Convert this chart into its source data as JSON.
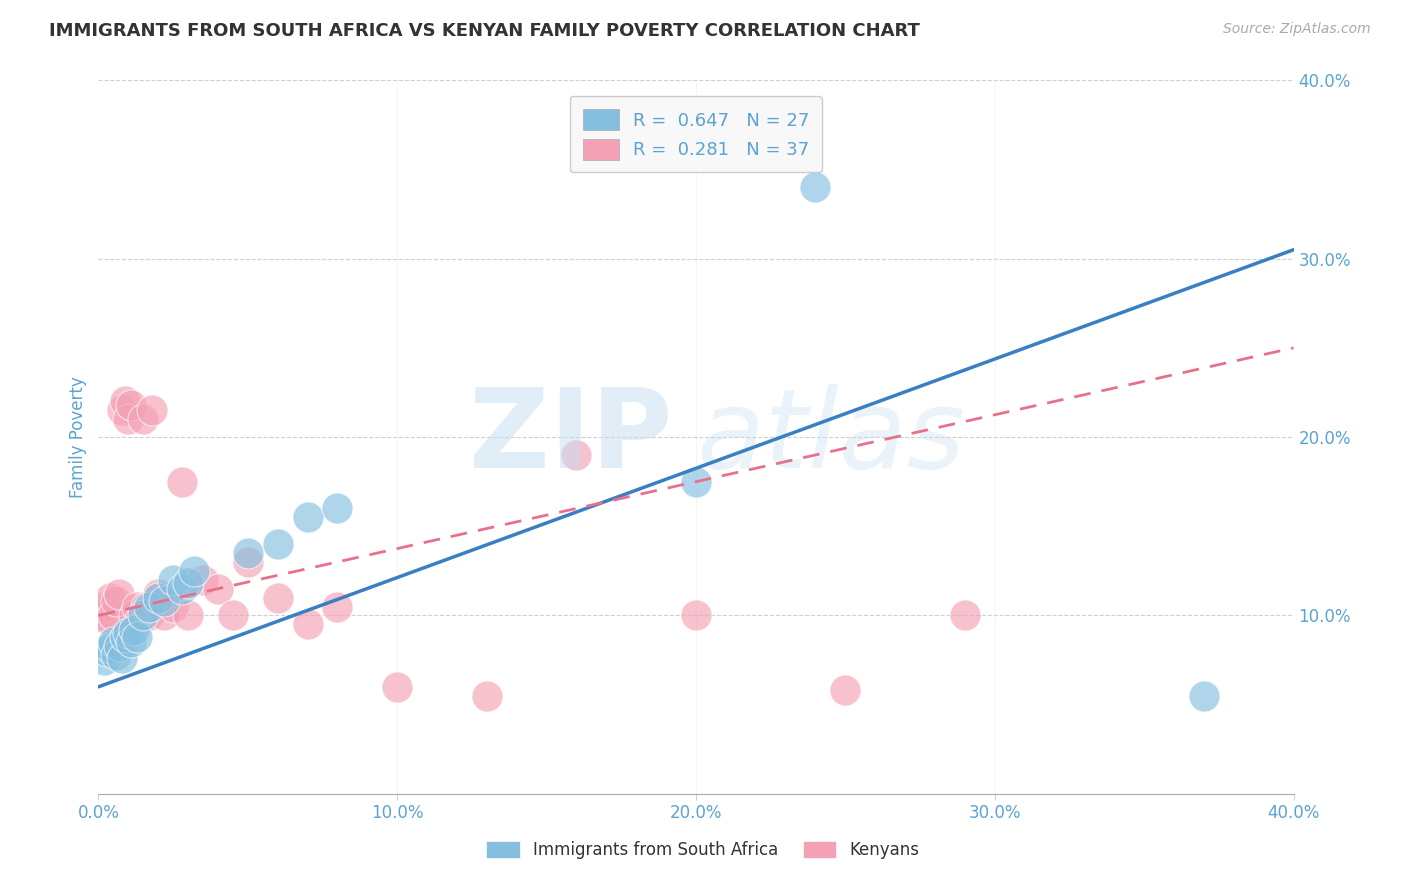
{
  "title": "IMMIGRANTS FROM SOUTH AFRICA VS KENYAN FAMILY POVERTY CORRELATION CHART",
  "source": "Source: ZipAtlas.com",
  "ylabel": "Family Poverty",
  "xlim": [
    0.0,
    0.4
  ],
  "ylim": [
    0.0,
    0.4
  ],
  "xtick_labels": [
    "0.0%",
    "10.0%",
    "20.0%",
    "30.0%",
    "40.0%"
  ],
  "xtick_vals": [
    0.0,
    0.1,
    0.2,
    0.3,
    0.4
  ],
  "ytick_vals": [
    0.1,
    0.2,
    0.3,
    0.4
  ],
  "blue_R": "0.647",
  "blue_N": "27",
  "pink_R": "0.281",
  "pink_N": "37",
  "blue_color": "#85bfe0",
  "pink_color": "#f4a0b5",
  "blue_line_color": "#3a7fc1",
  "pink_line_color": "#e8708a",
  "grid_color": "#d0d0d0",
  "title_color": "#333333",
  "axis_label_color": "#5ba3d0",
  "blue_scatter_x": [
    0.002,
    0.003,
    0.004,
    0.005,
    0.006,
    0.007,
    0.008,
    0.009,
    0.01,
    0.011,
    0.012,
    0.013,
    0.015,
    0.017,
    0.02,
    0.022,
    0.025,
    0.028,
    0.03,
    0.032,
    0.05,
    0.06,
    0.07,
    0.08,
    0.2,
    0.24,
    0.37
  ],
  "blue_scatter_y": [
    0.075,
    0.08,
    0.082,
    0.085,
    0.078,
    0.083,
    0.076,
    0.088,
    0.09,
    0.085,
    0.092,
    0.088,
    0.1,
    0.105,
    0.11,
    0.108,
    0.12,
    0.115,
    0.118,
    0.125,
    0.135,
    0.14,
    0.155,
    0.16,
    0.175,
    0.34,
    0.055
  ],
  "pink_scatter_x": [
    0.001,
    0.002,
    0.003,
    0.004,
    0.005,
    0.006,
    0.007,
    0.008,
    0.009,
    0.01,
    0.011,
    0.012,
    0.013,
    0.014,
    0.015,
    0.016,
    0.017,
    0.018,
    0.019,
    0.02,
    0.022,
    0.025,
    0.028,
    0.03,
    0.035,
    0.04,
    0.045,
    0.05,
    0.06,
    0.07,
    0.08,
    0.1,
    0.13,
    0.16,
    0.2,
    0.25,
    0.29
  ],
  "pink_scatter_y": [
    0.1,
    0.105,
    0.098,
    0.11,
    0.1,
    0.108,
    0.112,
    0.215,
    0.22,
    0.21,
    0.218,
    0.1,
    0.105,
    0.098,
    0.21,
    0.105,
    0.1,
    0.215,
    0.108,
    0.112,
    0.1,
    0.105,
    0.175,
    0.1,
    0.12,
    0.115,
    0.1,
    0.13,
    0.11,
    0.095,
    0.105,
    0.06,
    0.055,
    0.19,
    0.1,
    0.058,
    0.1
  ],
  "blue_trend_x": [
    0.0,
    0.4
  ],
  "blue_trend_y": [
    0.06,
    0.305
  ],
  "pink_trend_x": [
    0.0,
    0.4
  ],
  "pink_trend_y": [
    0.1,
    0.25
  ],
  "legend_box_color": "#f8f8f8",
  "legend_border_color": "#cccccc"
}
